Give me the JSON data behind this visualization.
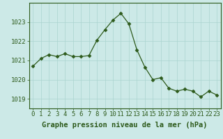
{
  "x": [
    0,
    1,
    2,
    3,
    4,
    5,
    6,
    7,
    8,
    9,
    10,
    11,
    12,
    13,
    14,
    15,
    16,
    17,
    18,
    19,
    20,
    21,
    22,
    23
  ],
  "y": [
    1020.7,
    1021.1,
    1021.3,
    1021.2,
    1021.35,
    1021.2,
    1021.2,
    1021.25,
    1022.05,
    1022.6,
    1023.1,
    1023.45,
    1022.9,
    1021.55,
    1020.65,
    1020.0,
    1020.1,
    1019.55,
    1019.4,
    1019.5,
    1019.4,
    1019.1,
    1019.4,
    1019.2
  ],
  "line_color": "#2d5a1b",
  "marker": "D",
  "marker_size": 2.5,
  "bg_color": "#cce9e7",
  "grid_color": "#aad4d0",
  "ylim": [
    1018.5,
    1024.0
  ],
  "xlim": [
    -0.5,
    23.5
  ],
  "yticks": [
    1019,
    1020,
    1021,
    1022,
    1023
  ],
  "xticks": [
    0,
    1,
    2,
    3,
    4,
    5,
    6,
    7,
    8,
    9,
    10,
    11,
    12,
    13,
    14,
    15,
    16,
    17,
    18,
    19,
    20,
    21,
    22,
    23
  ],
  "xlabel": "Graphe pression niveau de la mer (hPa)",
  "tick_color": "#2d5a1b",
  "axis_color": "#2d5a1b",
  "font_size_label": 7.5,
  "font_size_tick": 6.5
}
